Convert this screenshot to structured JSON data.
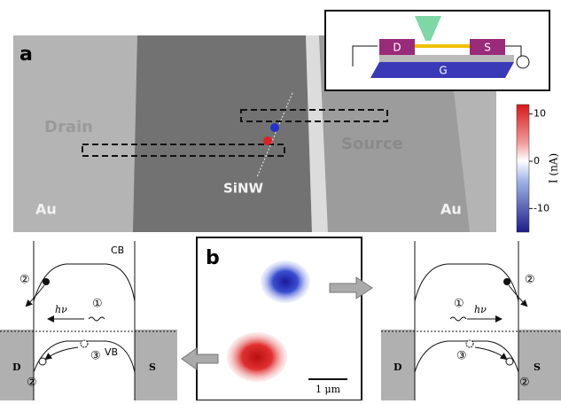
{
  "panel_a": {
    "label": "a",
    "inset": {
      "drain": "D",
      "source": "S",
      "gate": "G"
    },
    "labels": {
      "drain": "Drain",
      "source": "Source",
      "nanowire": "SiNW",
      "au_left": "Au",
      "au_right": "Au"
    },
    "colorbar": {
      "label": "I (nA)",
      "ylim": [
        -15,
        12
      ],
      "yticks": [
        10,
        0,
        -10
      ]
    }
  },
  "panel_b": {
    "label": "b",
    "scale_bar": "1 μm"
  },
  "left_diagram": {
    "conduction_band": "CB",
    "valence_band": "VB",
    "photon": "hν",
    "drain": "D",
    "source": "S",
    "steps": [
      "①",
      "②",
      "②",
      "③"
    ]
  },
  "right_diagram": {
    "photon": "hν",
    "drain": "D",
    "source": "S",
    "steps": [
      "①",
      "②",
      "②",
      "③"
    ]
  }
}
